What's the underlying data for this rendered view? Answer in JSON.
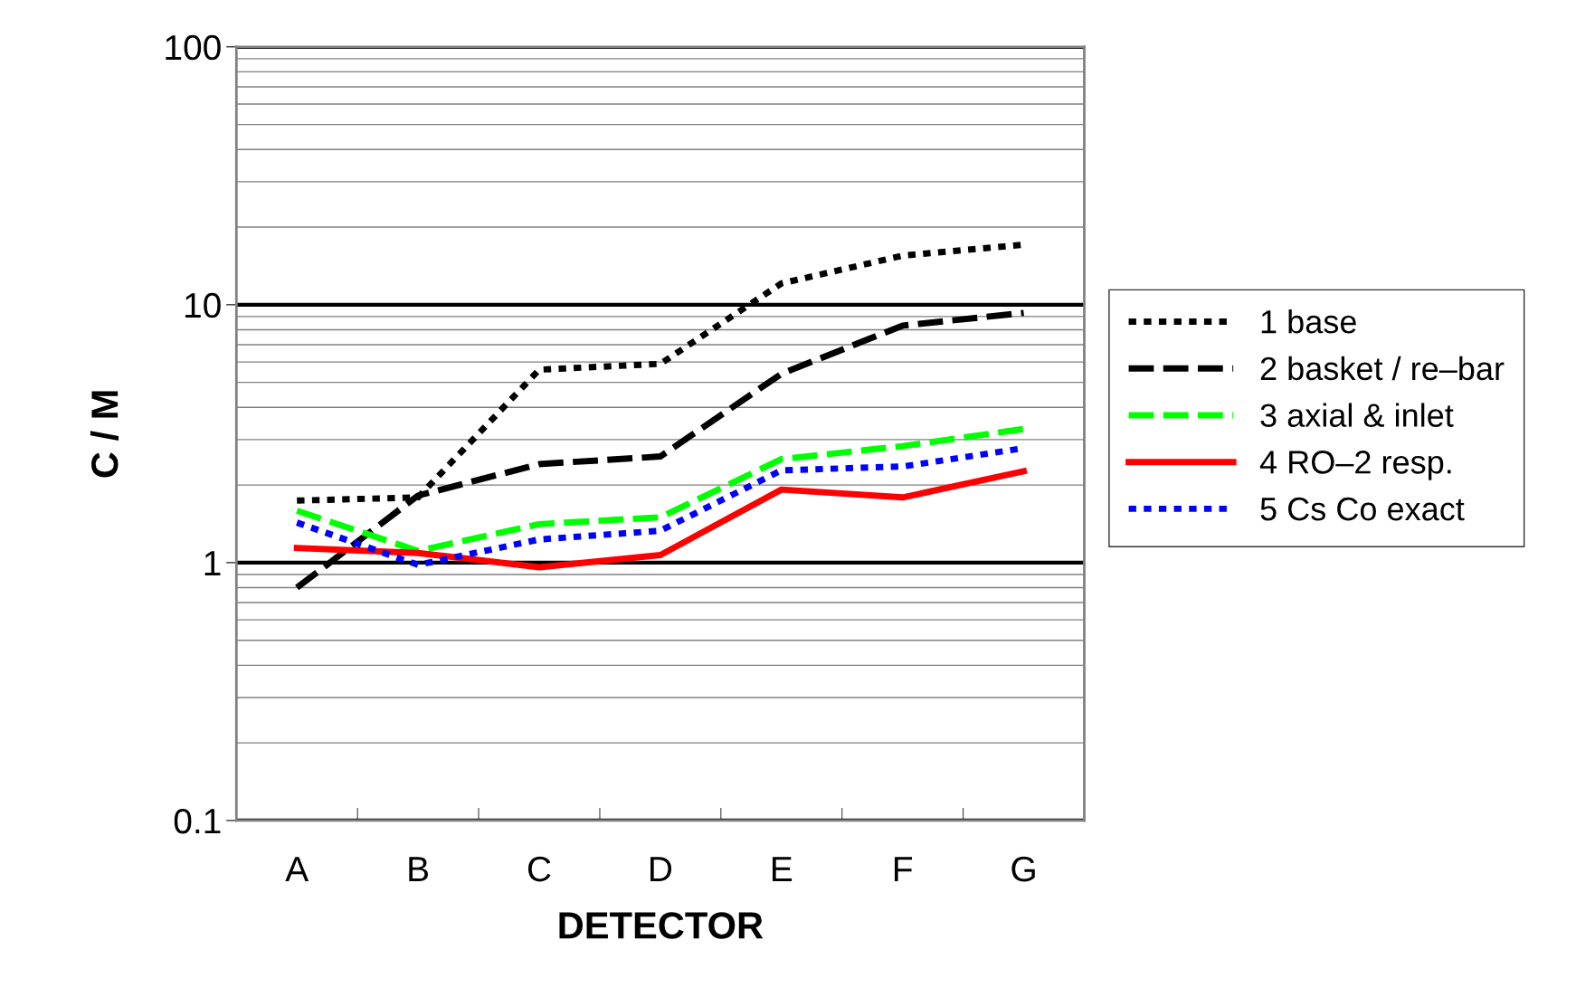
{
  "chart_data": {
    "type": "line",
    "xlabel": "DETECTOR",
    "ylabel": "C / M",
    "categories": [
      "A",
      "B",
      "C",
      "D",
      "E",
      "F",
      "G"
    ],
    "series": [
      {
        "name": "1 base",
        "color": "#000000",
        "line_style": "dotted",
        "values": [
          1.74,
          1.79,
          5.6,
          5.9,
          12.1,
          15.5,
          17.1
        ]
      },
      {
        "name": "2 basket / re–bar",
        "color": "#000000",
        "line_style": "dashed",
        "values": [
          0.8,
          1.82,
          2.41,
          2.58,
          5.4,
          8.3,
          9.3
        ]
      },
      {
        "name": "3 axial & inlet",
        "color": "#00ff00",
        "line_style": "dashed",
        "values": [
          1.59,
          1.11,
          1.41,
          1.5,
          2.52,
          2.83,
          3.3
        ]
      },
      {
        "name": "4 RO–2 resp.",
        "color": "#ff0000",
        "line_style": "solid",
        "values": [
          1.14,
          1.09,
          0.96,
          1.07,
          1.92,
          1.79,
          2.26
        ]
      },
      {
        "name": "5 Cs Co exact",
        "color": "#0000ff",
        "line_style": "dotted",
        "values": [
          1.43,
          0.98,
          1.23,
          1.33,
          2.28,
          2.36,
          2.78
        ]
      }
    ],
    "log": "y",
    "ylim": [
      0.1,
      100
    ],
    "yticks": [
      0.1,
      1,
      10,
      100
    ],
    "grid": "y",
    "legend": "right",
    "marker": "none"
  }
}
